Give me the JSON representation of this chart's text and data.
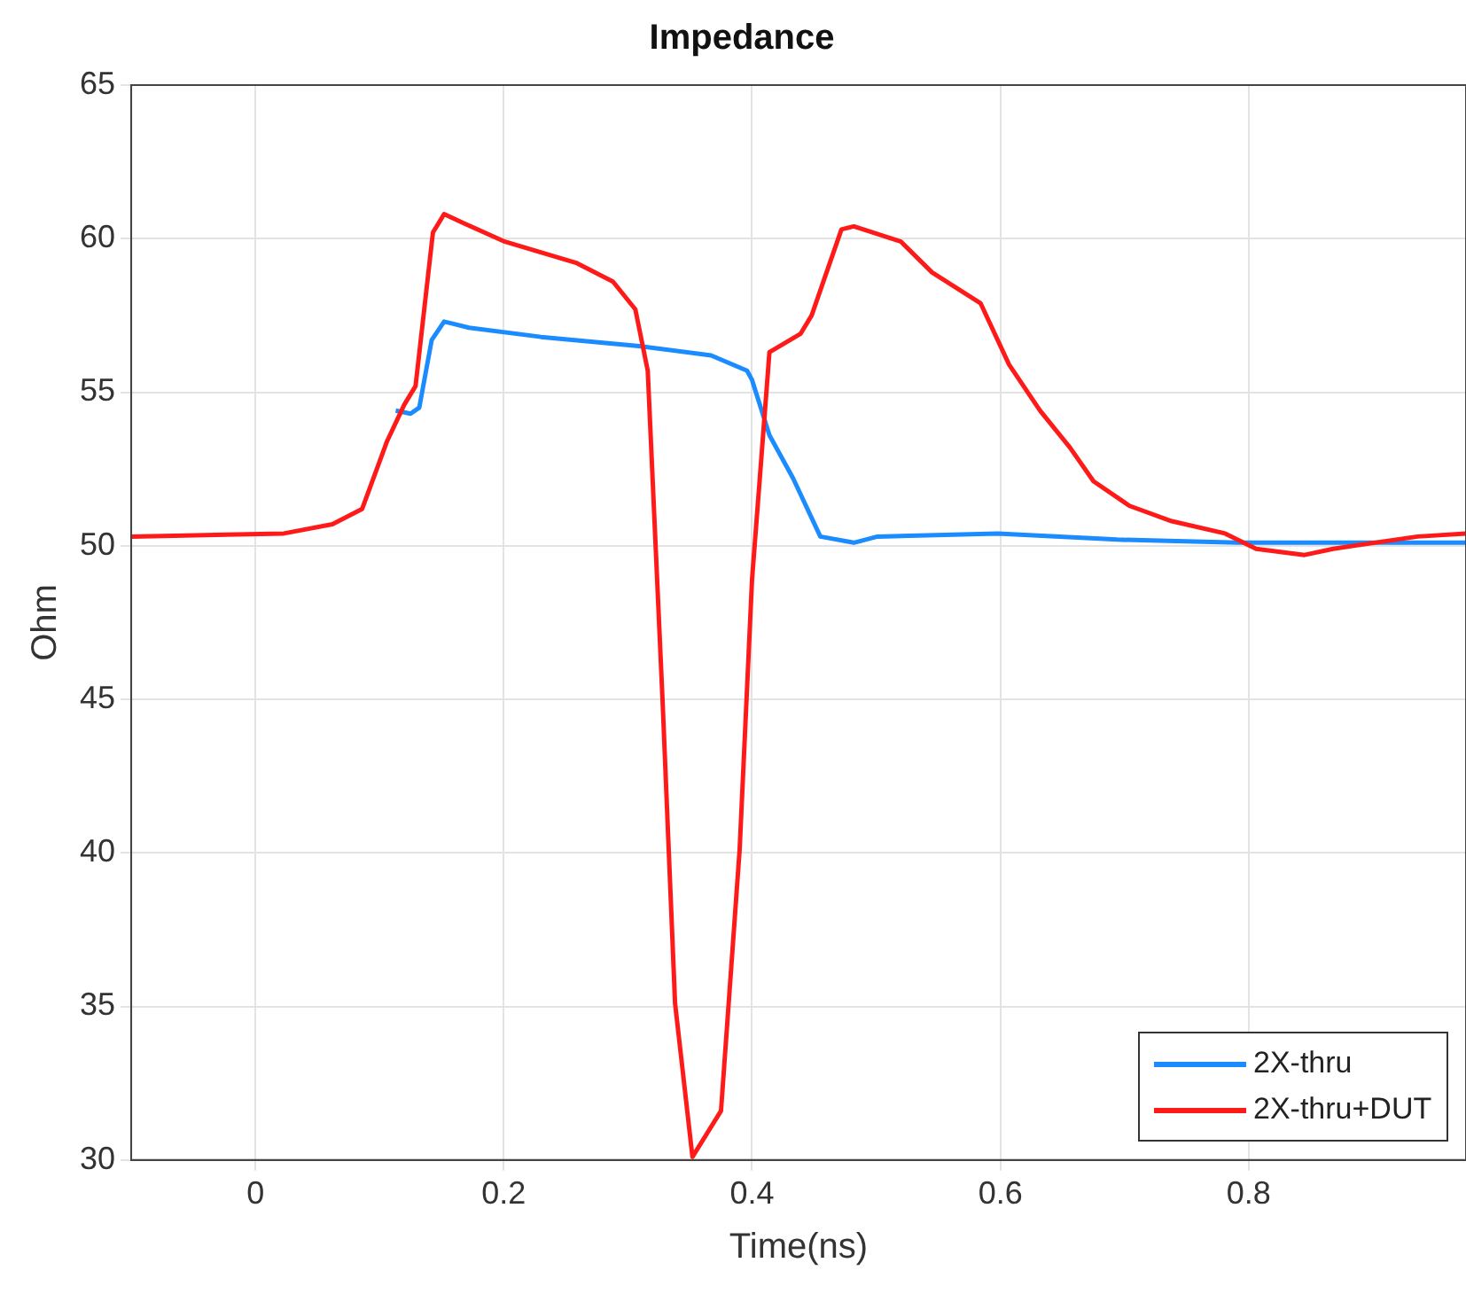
{
  "chart_data": {
    "type": "line",
    "title": "Impedance",
    "xlabel": "Time(ns)",
    "ylabel": "Ohm",
    "xlim": [
      -0.1,
      0.975
    ],
    "xticks": [
      0,
      0.2,
      0.4,
      0.6,
      0.8
    ],
    "ylim": [
      30,
      65
    ],
    "yticks": [
      30,
      35,
      40,
      45,
      50,
      55,
      60,
      65
    ],
    "grid": true,
    "legend": "bottom right",
    "line_style": "solid",
    "marker": "none",
    "series": [
      {
        "name": "2X-thru",
        "color": "#1a8cff",
        "x": [
          0.113,
          0.125,
          0.132,
          0.142,
          0.152,
          0.172,
          0.23,
          0.309,
          0.367,
          0.396,
          0.4,
          0.414,
          0.433,
          0.455,
          0.482,
          0.501,
          0.598,
          0.694,
          0.791,
          0.975
        ],
        "values": [
          54.4,
          54.3,
          54.5,
          56.7,
          57.3,
          57.1,
          56.8,
          56.5,
          56.2,
          55.7,
          55.4,
          53.6,
          52.2,
          50.3,
          50.1,
          50.3,
          50.4,
          50.2,
          50.1,
          50.1
        ]
      },
      {
        "name": "2X-thru+DUT",
        "color": "#ff1a1a",
        "x": [
          -0.1,
          0.023,
          0.062,
          0.086,
          0.106,
          0.12,
          0.129,
          0.143,
          0.152,
          0.168,
          0.201,
          0.259,
          0.288,
          0.306,
          0.316,
          0.328,
          0.338,
          0.352,
          0.375,
          0.39,
          0.4,
          0.414,
          0.439,
          0.448,
          0.472,
          0.482,
          0.52,
          0.545,
          0.584,
          0.607,
          0.632,
          0.656,
          0.675,
          0.704,
          0.738,
          0.781,
          0.806,
          0.845,
          0.868,
          0.936,
          0.975
        ],
        "values": [
          50.3,
          50.4,
          50.7,
          51.2,
          53.4,
          54.6,
          55.2,
          60.2,
          60.8,
          60.5,
          59.9,
          59.2,
          58.6,
          57.7,
          55.7,
          44.9,
          35.1,
          30.1,
          31.6,
          40.1,
          48.9,
          56.3,
          56.9,
          57.5,
          60.3,
          60.4,
          59.9,
          58.9,
          57.9,
          55.9,
          54.4,
          53.2,
          52.1,
          51.3,
          50.8,
          50.4,
          49.9,
          49.7,
          49.9,
          50.3,
          50.4
        ]
      }
    ]
  }
}
